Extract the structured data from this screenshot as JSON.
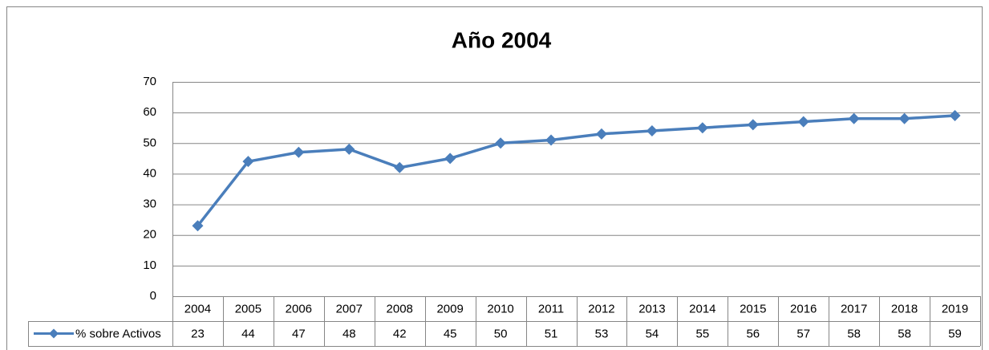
{
  "chart_data": {
    "type": "line",
    "title": "Año 2004",
    "categories": [
      "2004",
      "2005",
      "2006",
      "2007",
      "2008",
      "2009",
      "2010",
      "2011",
      "2012",
      "2013",
      "2014",
      "2015",
      "2016",
      "2017",
      "2018",
      "2019"
    ],
    "series": [
      {
        "name": "% sobre Activos",
        "color": "#4a7ebb",
        "values": [
          23,
          44,
          47,
          48,
          42,
          45,
          50,
          51,
          53,
          54,
          55,
          56,
          57,
          58,
          58,
          59
        ]
      }
    ],
    "ylim": [
      0,
      70
    ],
    "yticks": [
      0,
      10,
      20,
      30,
      40,
      50,
      60,
      70
    ],
    "grid": true
  }
}
